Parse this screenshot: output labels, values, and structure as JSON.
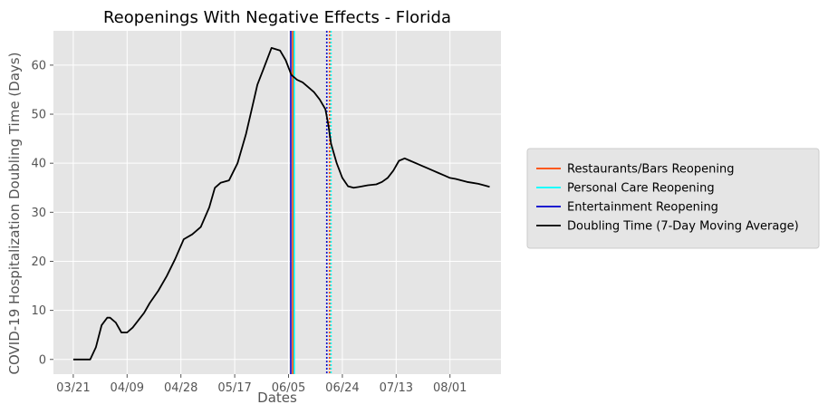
{
  "chart_data": {
    "type": "line",
    "title": "Reopenings With Negative Effects - Florida",
    "xlabel": "Dates",
    "ylabel": "COVID-19 Hospitalization Doubling Time (Days)",
    "x_tick_labels": [
      "03/21",
      "04/09",
      "04/28",
      "05/17",
      "06/05",
      "06/24",
      "07/13",
      "08/01"
    ],
    "x_tick_days": [
      0,
      19,
      38,
      57,
      76,
      95,
      114,
      133
    ],
    "xlim_days": [
      -7,
      151
    ],
    "y_ticks": [
      0,
      10,
      20,
      30,
      40,
      50,
      60
    ],
    "ylim": [
      -3,
      67
    ],
    "grid": true,
    "legend_position": "center-right",
    "series": [
      {
        "name": "Doubling Time (7-Day Moving Average)",
        "color": "#000000",
        "x_days": [
          0,
          3,
          6,
          8,
          10,
          12,
          13,
          15,
          17,
          19,
          21,
          23,
          25,
          27,
          30,
          33,
          36,
          39,
          42,
          45,
          48,
          50,
          52,
          55,
          58,
          61,
          63,
          65,
          67,
          70,
          73,
          75,
          77,
          79,
          81,
          83,
          85,
          87,
          89,
          90,
          91,
          93,
          95,
          97,
          99,
          101,
          104,
          107,
          109,
          111,
          113,
          115,
          117,
          119,
          121,
          123,
          125,
          127,
          129,
          131,
          133,
          135,
          137,
          139,
          141,
          143,
          145,
          147
        ],
        "values": [
          0,
          0,
          0,
          2.5,
          7,
          8.5,
          8.5,
          7.5,
          5.5,
          5.5,
          6.5,
          8,
          9.5,
          11.5,
          14,
          17,
          20.5,
          24.5,
          25.5,
          27,
          31,
          35,
          36,
          36.5,
          40,
          46,
          51,
          56,
          59,
          63.5,
          63,
          61,
          58,
          57,
          56.5,
          55.5,
          54.5,
          53,
          51,
          48,
          44,
          40,
          37,
          35.3,
          35,
          35.2,
          35.5,
          35.7,
          36.2,
          37,
          38.5,
          40.5,
          41,
          40.5,
          40,
          39.5,
          39,
          38.5,
          38,
          37.5,
          37,
          36.8,
          36.5,
          36.2,
          36,
          35.8,
          35.5,
          35.2
        ]
      }
    ],
    "events": [
      {
        "name": "Restaurants/Bars Reopening",
        "color": "#FF4500",
        "solid_day": 77.5,
        "dotted_day": 90.5
      },
      {
        "name": "Personal Care Reopening",
        "color": "#00FFFF",
        "solid_day": 78,
        "dotted_day": 91
      },
      {
        "name": "Entertainment Reopening",
        "color": "#0000CD",
        "solid_day": 76.8,
        "dotted_day": 89.5
      }
    ]
  }
}
